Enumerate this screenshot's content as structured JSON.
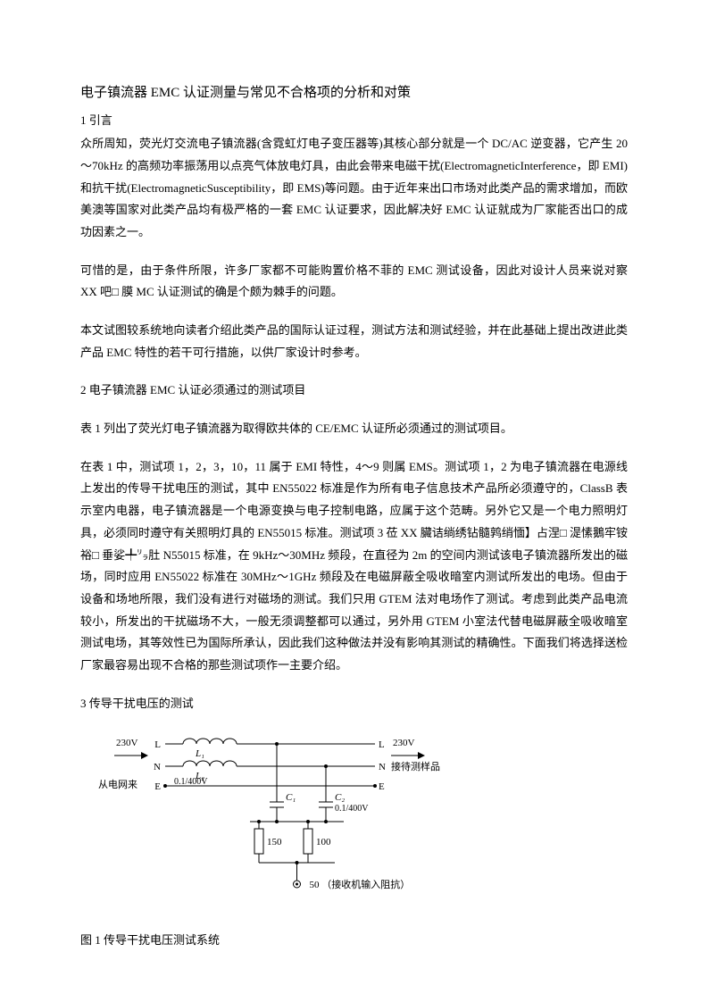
{
  "title": "电子镇流器 EMC 认证测量与常见不合格项的分析和对策",
  "section1": {
    "heading": "1 引言",
    "para1": "众所周知，荧光灯交流电子镇流器(含霓虹灯电子变压器等)其核心部分就是一个 DC/AC 逆变器，它产生 20～70kHz 的高频功率振荡用以点亮气体放电灯具，由此会带来电磁干扰(ElectromagneticInterference，即 EMI)和抗干扰(ElectromagneticSusceptibility，即 EMS)等问题。由于近年来出口市场对此类产品的需求增加，而欧美澳等国家对此类产品均有极严格的一套 EMC 认证要求，因此解决好 EMC 认证就成为厂家能否出口的成功因素之一。",
    "para2": "可惜的是，由于条件所限，许多厂家都不可能购置价格不菲的 EMC 测试设备，因此对设计人员来说对察 XX 吧□ 膜 MC 认证测试的确是个颇为棘手的问题。",
    "para3": "本文试图较系统地向读者介绍此类产品的国际认证过程，测试方法和测试经验，并在此基础上提出改进此类产品 EMC 特性的若干可行措施，以供厂家设计时参考。"
  },
  "section2": {
    "heading": "2 电子镇流器 EMC 认证必须通过的测试项目",
    "para1": "表 1 列出了荧光灯电子镇流器为取得欧共体的 CE/EMC 认证所必须通过的测试项目。",
    "para2": "在表 1 中，测试项 1，2，3，10，11 属于 EMI 特性，4～9 则属 EMS。测试项 1，2 为电子镇流器在电源线上发出的传导干扰电压的测试，其中 EN55022 标准是作为所有电子信息技术产品所必须遵守的，ClassB 表示室内电器，电子镇流器是一个电源变换与电子控制电路，应属于这个范畴。另外它又是一个电力照明灯具，必须同时遵守有关照明灯具的 EN55015 标准。测试项 3 莅 XX 臟诘绱绣钻髓鹑绡愐】占涅□ 湜愫鵝牢铵裕□ 垂娑╇㍒肚 N55015 标准，在 9kHz～30MHz 频段，在直径为 2m 的空间内测试该电子镇流器所发出的磁场，同时应用 EN55022 标准在 30MHz～1GHz 频段及在电磁屏蔽全吸收暗室内测试所发出的电场。但由于设备和场地所限，我们没有进行对磁场的测试。我们只用 GTEM 法对电场作了测试。考虑到此类产品电流较小，所发出的干扰磁场不大，一般无须调整都可以通过，另外用 GTEM 小室法代替电磁屏蔽全吸收暗室测试电场，其等效性已为国际所承认，因此我们这种做法并没有影响其测试的精确性。下面我们将选择送检厂家最容易出现不合格的那些测试项作一主要介绍。"
  },
  "section3": {
    "heading": "3 传导干扰电压的测试"
  },
  "diagram": {
    "left_voltage": "230V",
    "left_source": "从电网来",
    "right_voltage": "230V",
    "right_sample": "接待测样品",
    "L_label": "L",
    "N_label": "N",
    "E_label": "E",
    "L1": "L₁",
    "L2": "L₂",
    "cap_val": "0.1/400V",
    "C1": "C₁",
    "C2": "C₂",
    "R150": "150",
    "R100": "100",
    "R50": "50",
    "receiver": "（接收机输入阻抗）",
    "stroke": "#000000",
    "stroke_width": 1,
    "font_size": 11,
    "font_family": "SimSun, serif"
  },
  "figure_caption": "图 1 传导干扰电压测试系统"
}
